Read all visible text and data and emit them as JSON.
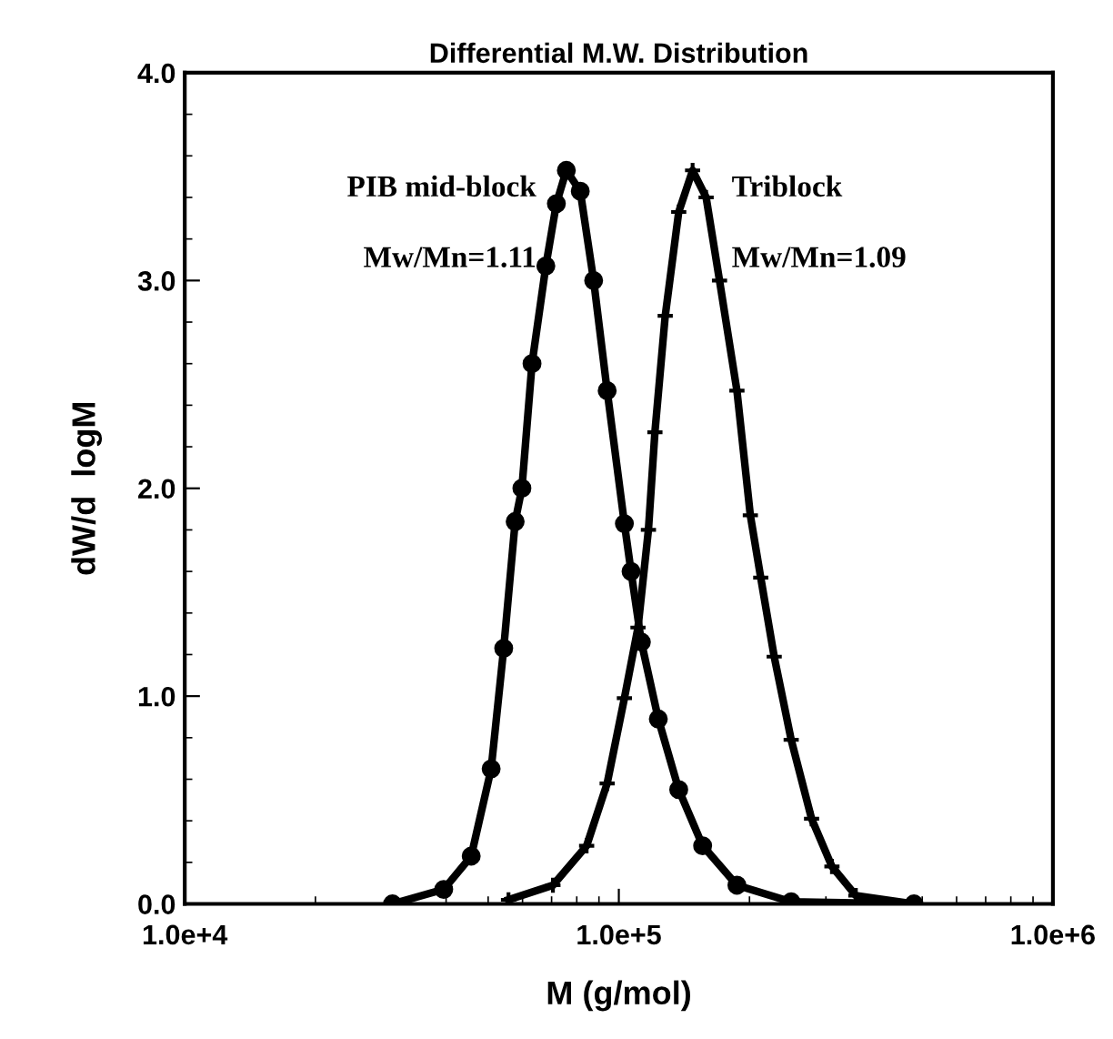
{
  "chart_data": {
    "type": "line",
    "title": "Differential M.W. Distribution",
    "xlabel": "M (g/mol)",
    "ylabel": "dW/d  logM",
    "log": "x",
    "xlim": [
      10000,
      1000000
    ],
    "xticks": [
      {
        "value": 10000,
        "label": "1.0e+4"
      },
      {
        "value": 100000,
        "label": "1.0e+5"
      },
      {
        "value": 1000000,
        "label": "1.0e+6"
      }
    ],
    "ylim": [
      0,
      4
    ],
    "yticks": [
      {
        "value": 0,
        "label": "0.0"
      },
      {
        "value": 1,
        "label": "1.0"
      },
      {
        "value": 2,
        "label": "2.0"
      },
      {
        "value": 3,
        "label": "3.0"
      },
      {
        "value": 4,
        "label": "4.0"
      }
    ],
    "grid": false,
    "legend": false,
    "line_style": "solid",
    "annotations": [
      "Mw/Mn=1.11",
      "Mw/Mn=1.09"
    ],
    "series": [
      {
        "name": "PIB mid-block",
        "color": "#000000",
        "marker": "circle",
        "x": [
          30100,
          39500,
          45700,
          50800,
          54300,
          57700,
          59800,
          63100,
          67900,
          71800,
          75700,
          81500,
          87500,
          94000,
          103000,
          106700,
          112700,
          123300,
          137400,
          156000,
          187100,
          249500,
          478600
        ],
        "values": [
          0,
          0.07,
          0.23,
          0.65,
          1.23,
          1.84,
          2.0,
          2.6,
          3.07,
          3.37,
          3.53,
          3.43,
          3.0,
          2.47,
          1.83,
          1.6,
          1.26,
          0.89,
          0.55,
          0.28,
          0.09,
          0.01,
          0
        ]
      },
      {
        "name": "Triblock",
        "color": "#000000",
        "marker": "cross",
        "x": [
          55700,
          70500,
          84300,
          94000,
          103000,
          110700,
          117000,
          121100,
          127900,
          137400,
          147900,
          158900,
          170600,
          187100,
          200900,
          212300,
          228000,
          249500,
          278000,
          309700,
          351600,
          478600
        ],
        "values": [
          0.02,
          0.09,
          0.28,
          0.58,
          0.99,
          1.33,
          1.8,
          2.27,
          2.83,
          3.33,
          3.53,
          3.4,
          3.0,
          2.47,
          1.87,
          1.57,
          1.19,
          0.79,
          0.41,
          0.18,
          0.04,
          0
        ]
      }
    ]
  }
}
